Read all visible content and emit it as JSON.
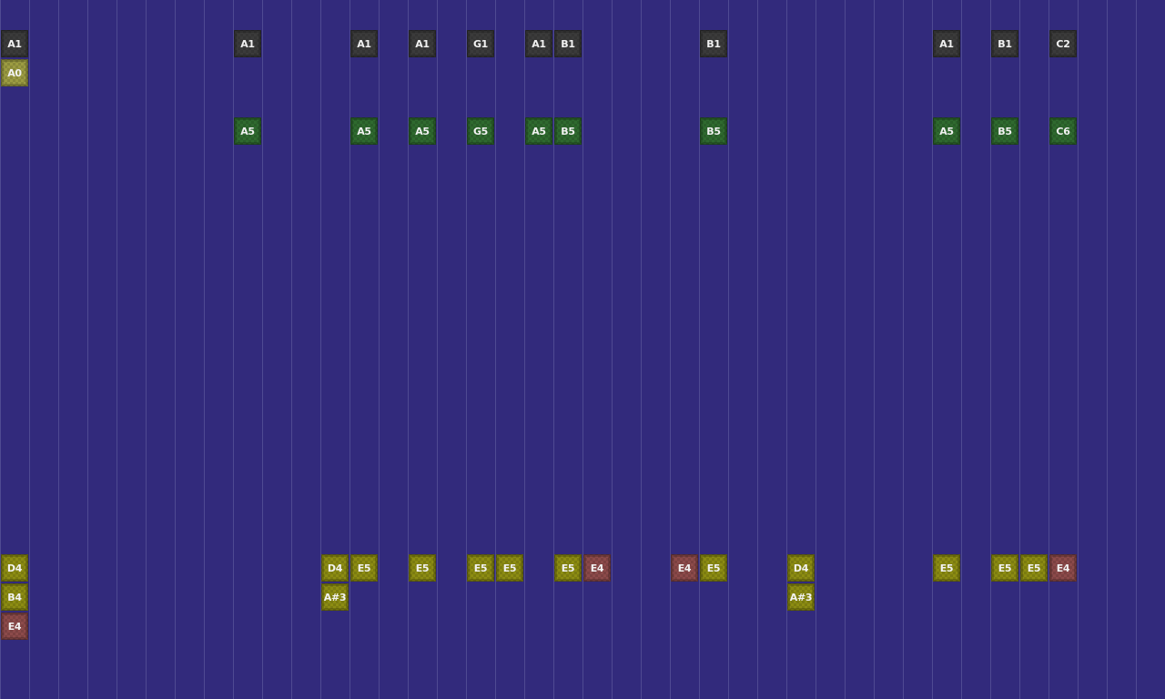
{
  "colors": {
    "background": "#322a7c",
    "grid_line": "#4f4a92",
    "bass": "#3b3b3b",
    "bass_low": "#9c9c42",
    "lead": "#2f6a2f",
    "chord": "#8c8c12",
    "chord_alt": "#8c4a4a"
  },
  "notes": [
    {
      "label": "A1",
      "step": 0,
      "lane": 1,
      "kind": "bass"
    },
    {
      "label": "A1",
      "step": 8,
      "lane": 1,
      "kind": "bass"
    },
    {
      "label": "A1",
      "step": 12,
      "lane": 1,
      "kind": "bass"
    },
    {
      "label": "A1",
      "step": 14,
      "lane": 1,
      "kind": "bass"
    },
    {
      "label": "G1",
      "step": 16,
      "lane": 1,
      "kind": "bass"
    },
    {
      "label": "A1",
      "step": 18,
      "lane": 1,
      "kind": "bass"
    },
    {
      "label": "B1",
      "step": 19,
      "lane": 1,
      "kind": "bass"
    },
    {
      "label": "B1",
      "step": 24,
      "lane": 1,
      "kind": "bass"
    },
    {
      "label": "A1",
      "step": 32,
      "lane": 1,
      "kind": "bass"
    },
    {
      "label": "B1",
      "step": 34,
      "lane": 1,
      "kind": "bass"
    },
    {
      "label": "C2",
      "step": 36,
      "lane": 1,
      "kind": "bass"
    },
    {
      "label": "A0",
      "step": 0,
      "lane": 2,
      "kind": "bass_low"
    },
    {
      "label": "A5",
      "step": 8,
      "lane": 4,
      "kind": "lead"
    },
    {
      "label": "A5",
      "step": 12,
      "lane": 4,
      "kind": "lead"
    },
    {
      "label": "A5",
      "step": 14,
      "lane": 4,
      "kind": "lead"
    },
    {
      "label": "G5",
      "step": 16,
      "lane": 4,
      "kind": "lead"
    },
    {
      "label": "A5",
      "step": 18,
      "lane": 4,
      "kind": "lead"
    },
    {
      "label": "B5",
      "step": 19,
      "lane": 4,
      "kind": "lead"
    },
    {
      "label": "B5",
      "step": 24,
      "lane": 4,
      "kind": "lead"
    },
    {
      "label": "A5",
      "step": 32,
      "lane": 4,
      "kind": "lead"
    },
    {
      "label": "B5",
      "step": 34,
      "lane": 4,
      "kind": "lead"
    },
    {
      "label": "C6",
      "step": 36,
      "lane": 4,
      "kind": "lead"
    },
    {
      "label": "D4",
      "step": 0,
      "lane": 19,
      "kind": "chord"
    },
    {
      "label": "D4",
      "step": 11,
      "lane": 19,
      "kind": "chord"
    },
    {
      "label": "E5",
      "step": 12,
      "lane": 19,
      "kind": "chord"
    },
    {
      "label": "E5",
      "step": 14,
      "lane": 19,
      "kind": "chord"
    },
    {
      "label": "E5",
      "step": 16,
      "lane": 19,
      "kind": "chord"
    },
    {
      "label": "E5",
      "step": 17,
      "lane": 19,
      "kind": "chord"
    },
    {
      "label": "E5",
      "step": 19,
      "lane": 19,
      "kind": "chord"
    },
    {
      "label": "E4",
      "step": 20,
      "lane": 19,
      "kind": "chord_alt"
    },
    {
      "label": "E4",
      "step": 23,
      "lane": 19,
      "kind": "chord_alt"
    },
    {
      "label": "E5",
      "step": 24,
      "lane": 19,
      "kind": "chord"
    },
    {
      "label": "D4",
      "step": 27,
      "lane": 19,
      "kind": "chord"
    },
    {
      "label": "E5",
      "step": 32,
      "lane": 19,
      "kind": "chord"
    },
    {
      "label": "E5",
      "step": 34,
      "lane": 19,
      "kind": "chord"
    },
    {
      "label": "E5",
      "step": 35,
      "lane": 19,
      "kind": "chord"
    },
    {
      "label": "E4",
      "step": 36,
      "lane": 19,
      "kind": "chord_alt"
    },
    {
      "label": "B4",
      "step": 0,
      "lane": 20,
      "kind": "chord"
    },
    {
      "label": "A#3",
      "step": 11,
      "lane": 20,
      "kind": "chord"
    },
    {
      "label": "A#3",
      "step": 27,
      "lane": 20,
      "kind": "chord"
    },
    {
      "label": "E4",
      "step": 0,
      "lane": 21,
      "kind": "chord_alt"
    }
  ]
}
